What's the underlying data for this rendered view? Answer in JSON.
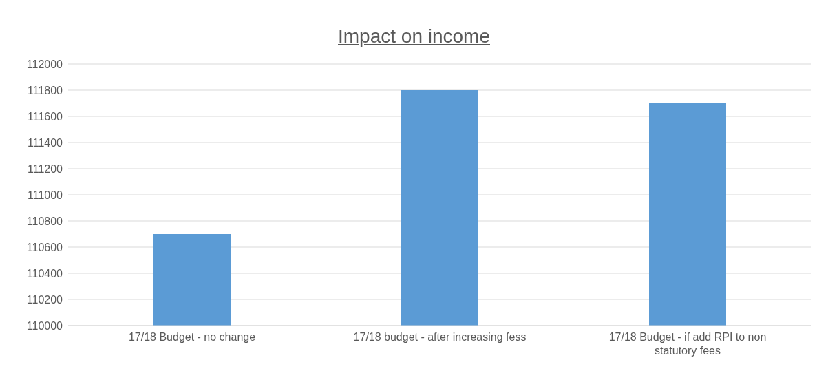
{
  "chart_data": {
    "type": "bar",
    "title": "Impact on income",
    "categories": [
      "17/18 Budget - no change",
      "17/18 budget - after increasing fess",
      "17/18 Budget - if add RPI to non statutory fees"
    ],
    "values": [
      110700,
      111800,
      111700
    ],
    "color": "#5b9bd5",
    "ylim": [
      110000,
      112000
    ],
    "yticks": [
      110000,
      110200,
      110400,
      110600,
      110800,
      111000,
      111200,
      111400,
      111600,
      111800,
      112000
    ],
    "grid": "y",
    "legend": false
  }
}
